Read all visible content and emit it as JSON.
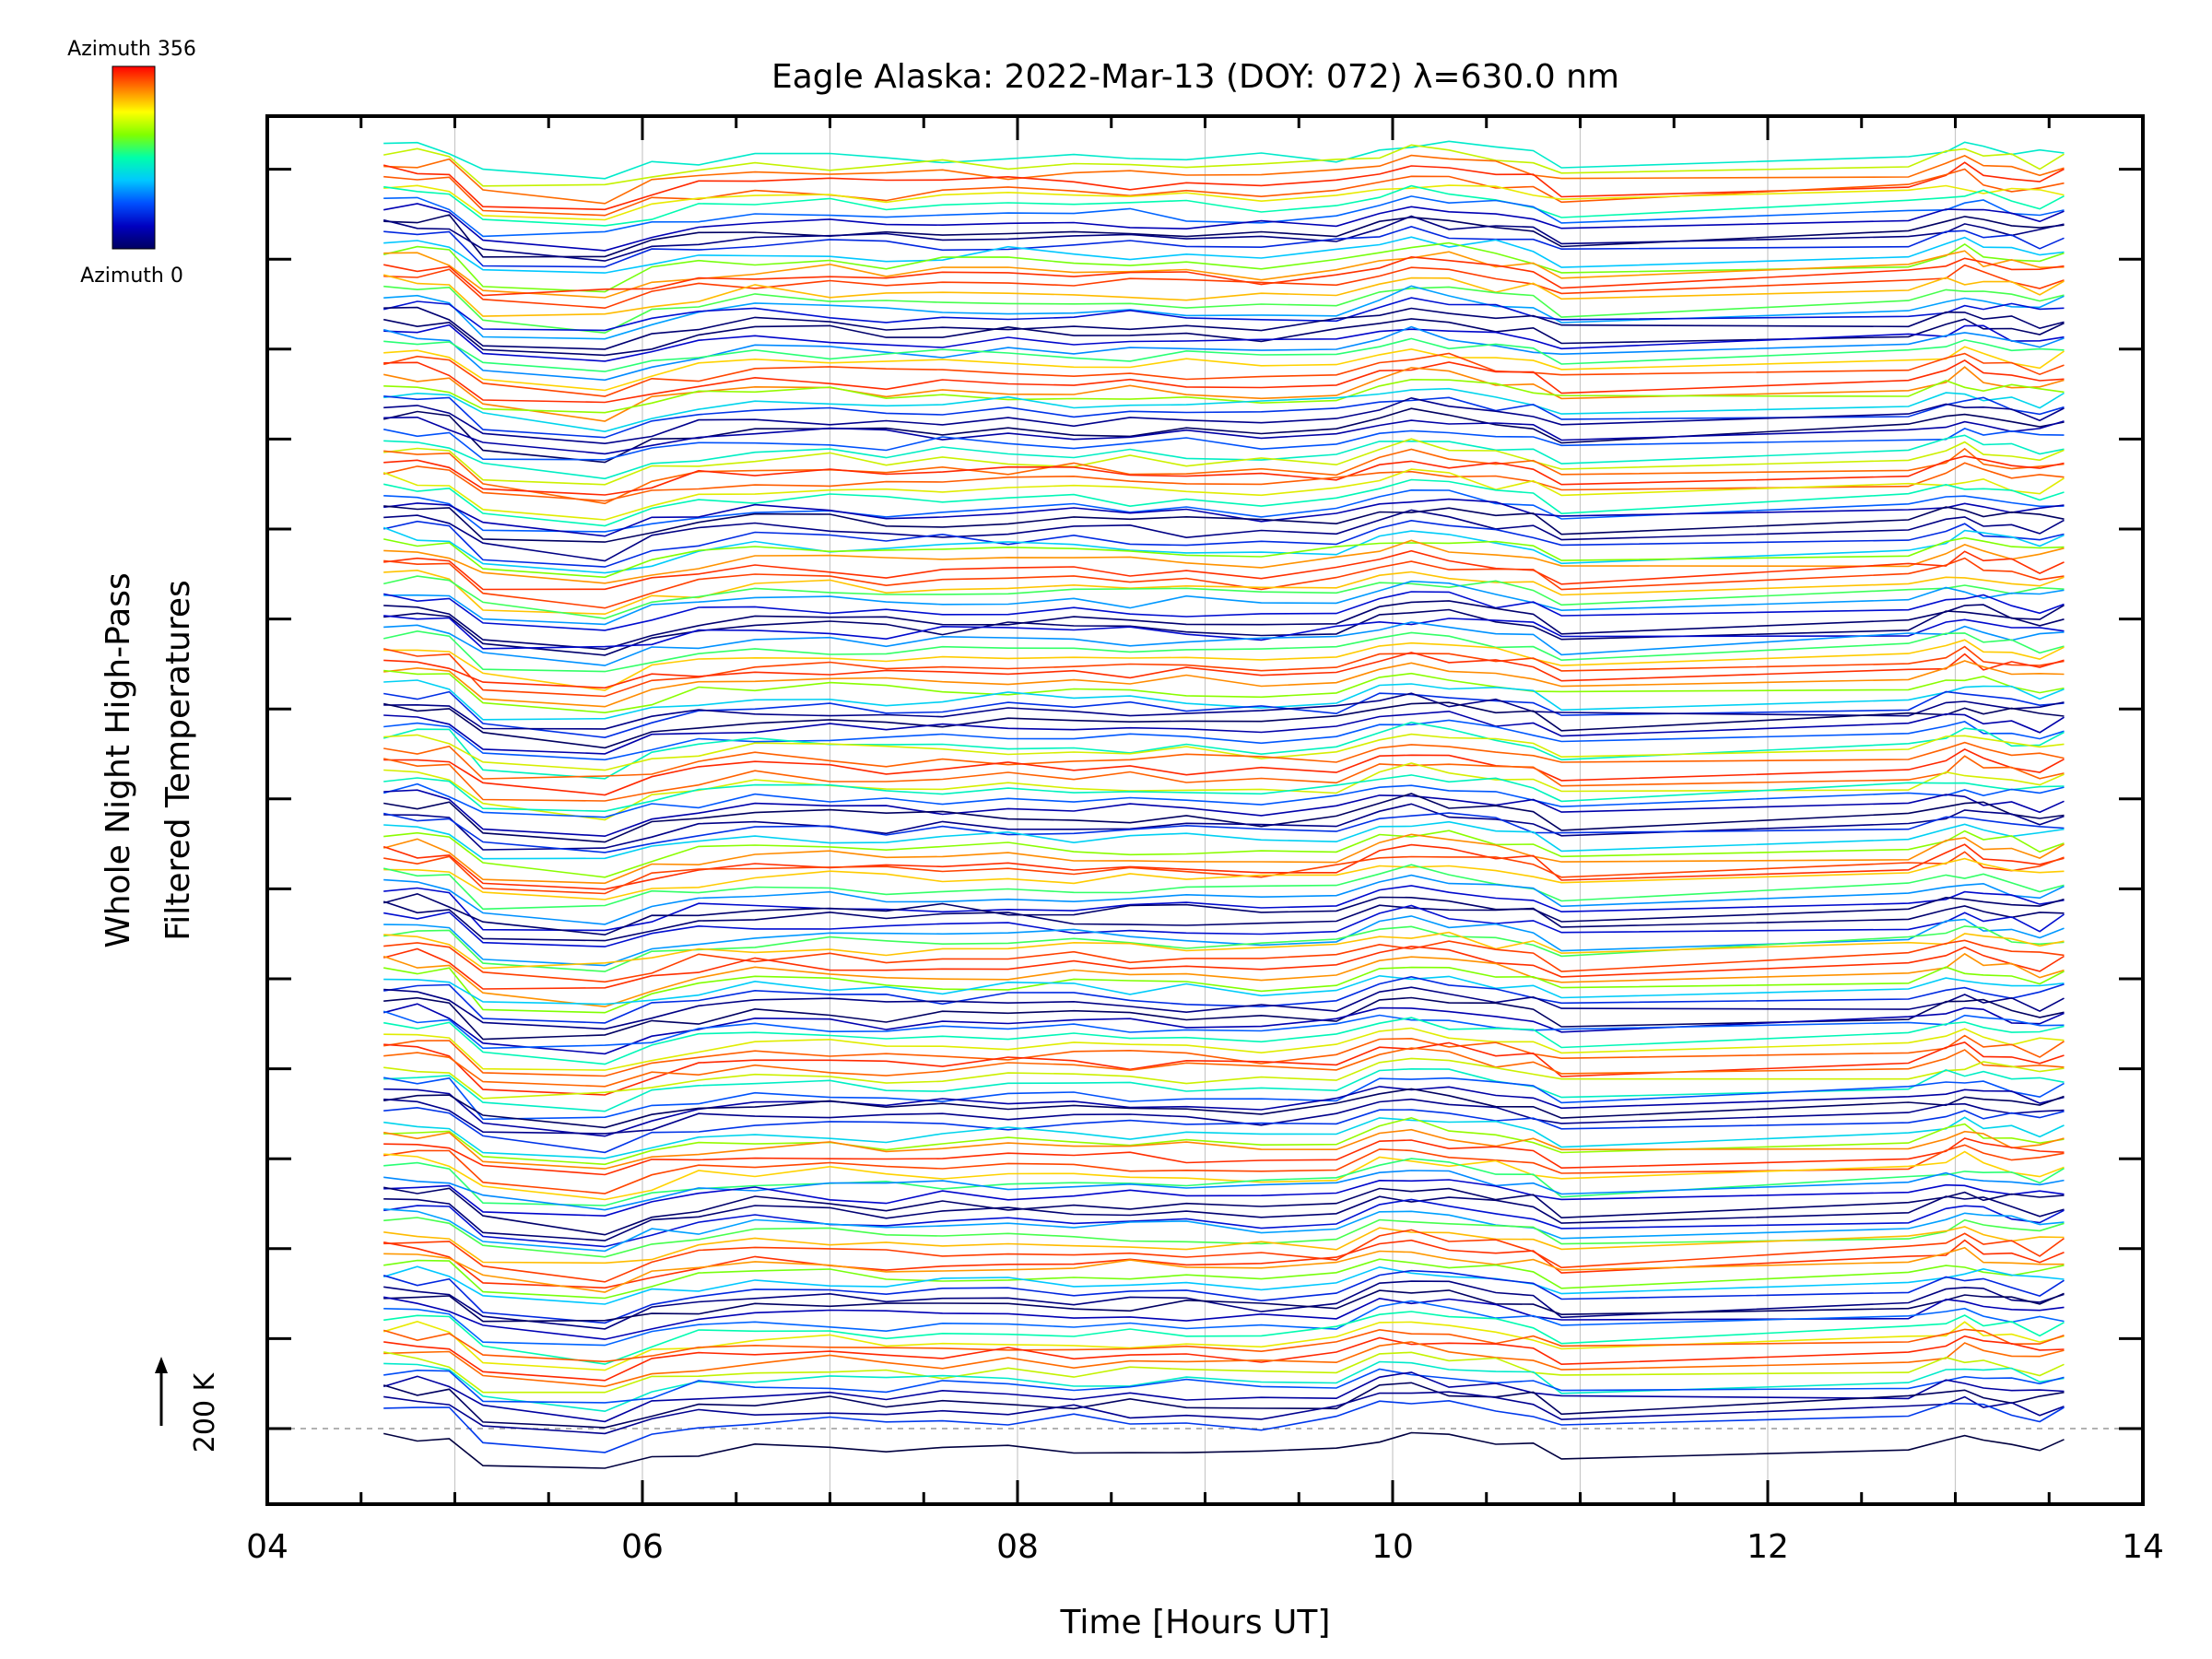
{
  "chart_data": {
    "type": "line",
    "title": "Eagle Alaska: 2022-Mar-13 (DOY: 072) λ=630.0 nm",
    "xlabel": "Time [Hours UT]",
    "ylabel_line1": "Whole Night High-Pass",
    "ylabel_line2": "Filtered Temperatures",
    "scale_label": "200 K",
    "xlim": [
      4,
      14
    ],
    "x_ticks": [
      "04",
      "06",
      "08",
      "10",
      "12",
      "14"
    ],
    "grid": "vertical dotted at each hour",
    "legend_colorbar": {
      "top_label": "Azimuth  356",
      "bottom_label": "Azimuth  0",
      "placement": "top-left",
      "colors": [
        "#ff0000",
        "#ff8000",
        "#ffff00",
        "#80ff00",
        "#00ffaa",
        "#00c8ff",
        "#0050ff",
        "#0000c0",
        "#000060"
      ]
    },
    "series_count": 160,
    "baseline_time": [
      4.62,
      4.8,
      4.97,
      5.15,
      5.8,
      6.05,
      6.3,
      6.6,
      7.0,
      7.3,
      7.6,
      7.95,
      8.3,
      8.6,
      8.9,
      9.3,
      9.7,
      9.93,
      10.1,
      10.3,
      10.55,
      10.75,
      10.9,
      12.75,
      12.95,
      13.05,
      13.15,
      13.3,
      13.45,
      13.58
    ],
    "baseline_shape": [
      0.0,
      -0.2,
      -0.9,
      -8.5,
      -10.5,
      -6.5,
      -4.5,
      -3.0,
      -3.2,
      -4.2,
      -3.8,
      -3.5,
      -3.6,
      -3.8,
      -3.9,
      -4.6,
      -3.8,
      -0.5,
      1.0,
      0.0,
      -1.6,
      -2.5,
      -6.0,
      -3.2,
      -0.8,
      0.5,
      -1.0,
      -2.0,
      -3.2,
      -1.5
    ]
  }
}
